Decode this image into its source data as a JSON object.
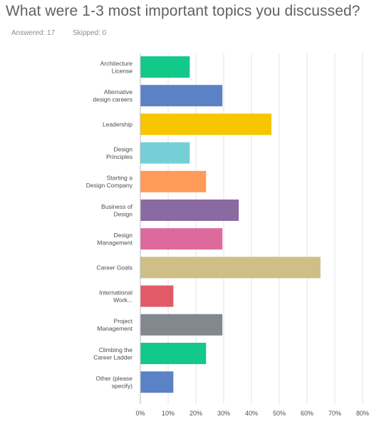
{
  "header": {
    "title": "What were 1-3 most important topics you discussed?",
    "answered": "Answered: 17",
    "skipped": "Skipped: 0"
  },
  "chart_data": {
    "type": "bar",
    "orientation": "horizontal",
    "categories": [
      [
        "Architecture",
        "License"
      ],
      [
        "Alternative",
        "design careers"
      ],
      [
        "Leadership"
      ],
      [
        "Design",
        "Principles"
      ],
      [
        "Starting a",
        "Design Company"
      ],
      [
        "Business of",
        "Design"
      ],
      [
        "Design",
        "Management"
      ],
      [
        "Career Goals"
      ],
      [
        "International",
        "Work..."
      ],
      [
        "Project",
        "Management"
      ],
      [
        "Climbing the",
        "Career Ladder"
      ],
      [
        "Other (please",
        "specify)"
      ]
    ],
    "values": [
      17.65,
      29.41,
      47.06,
      17.65,
      23.53,
      35.29,
      29.41,
      64.71,
      11.76,
      29.41,
      23.53,
      11.76
    ],
    "colors": [
      "#12c98a",
      "#5b82c4",
      "#f7c600",
      "#74d0d6",
      "#ff9a59",
      "#8a6aa0",
      "#dd6a9d",
      "#cdbf86",
      "#e35a67",
      "#82888e",
      "#12c98a",
      "#5b82c4"
    ],
    "x_ticks": [
      "0%",
      "10%",
      "20%",
      "30%",
      "40%",
      "50%",
      "60%",
      "70%",
      "80%"
    ],
    "xlim": [
      0,
      80
    ],
    "unit": "%",
    "grid": true,
    "legend": "none"
  }
}
